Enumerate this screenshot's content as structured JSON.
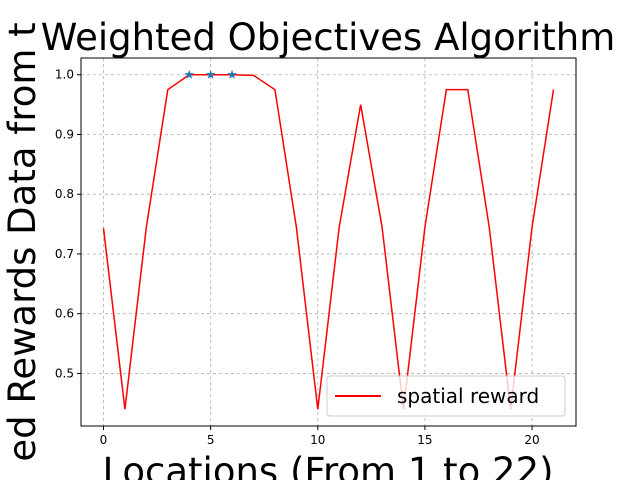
{
  "chart_data": {
    "type": "line",
    "title": "Weighted Objectives Algorithm",
    "x_label": "Locations (From 1 to 22)",
    "y_label": "ed Rewards Data from t",
    "x": [
      0,
      1,
      2,
      3,
      4,
      5,
      6,
      7,
      8,
      9,
      10,
      11,
      12,
      13,
      14,
      15,
      16,
      17,
      18,
      19,
      20,
      21
    ],
    "series": [
      {
        "name": "spatial reward",
        "color": "#ff0000",
        "values": [
          0.743,
          0.44,
          0.745,
          0.975,
          1.0,
          1.0,
          1.0,
          0.999,
          0.975,
          0.745,
          0.44,
          0.745,
          0.95,
          0.745,
          0.44,
          0.745,
          0.975,
          0.975,
          0.745,
          0.44,
          0.745,
          0.975
        ]
      }
    ],
    "highlights": {
      "x": [
        4,
        5,
        6
      ],
      "values": [
        1.0,
        1.0,
        1.0
      ],
      "color": "#1f77b4"
    },
    "xlim": [
      -1.05,
      22.05
    ],
    "ylim": [
      0.412,
      1.028
    ],
    "xticks": [
      0,
      5,
      10,
      15,
      20
    ],
    "yticks": [
      0.5,
      0.6,
      0.7,
      0.8,
      0.9,
      {
        "value": 1.0,
        "label": "1.0"
      }
    ],
    "grid": true,
    "legend": "lower right"
  }
}
